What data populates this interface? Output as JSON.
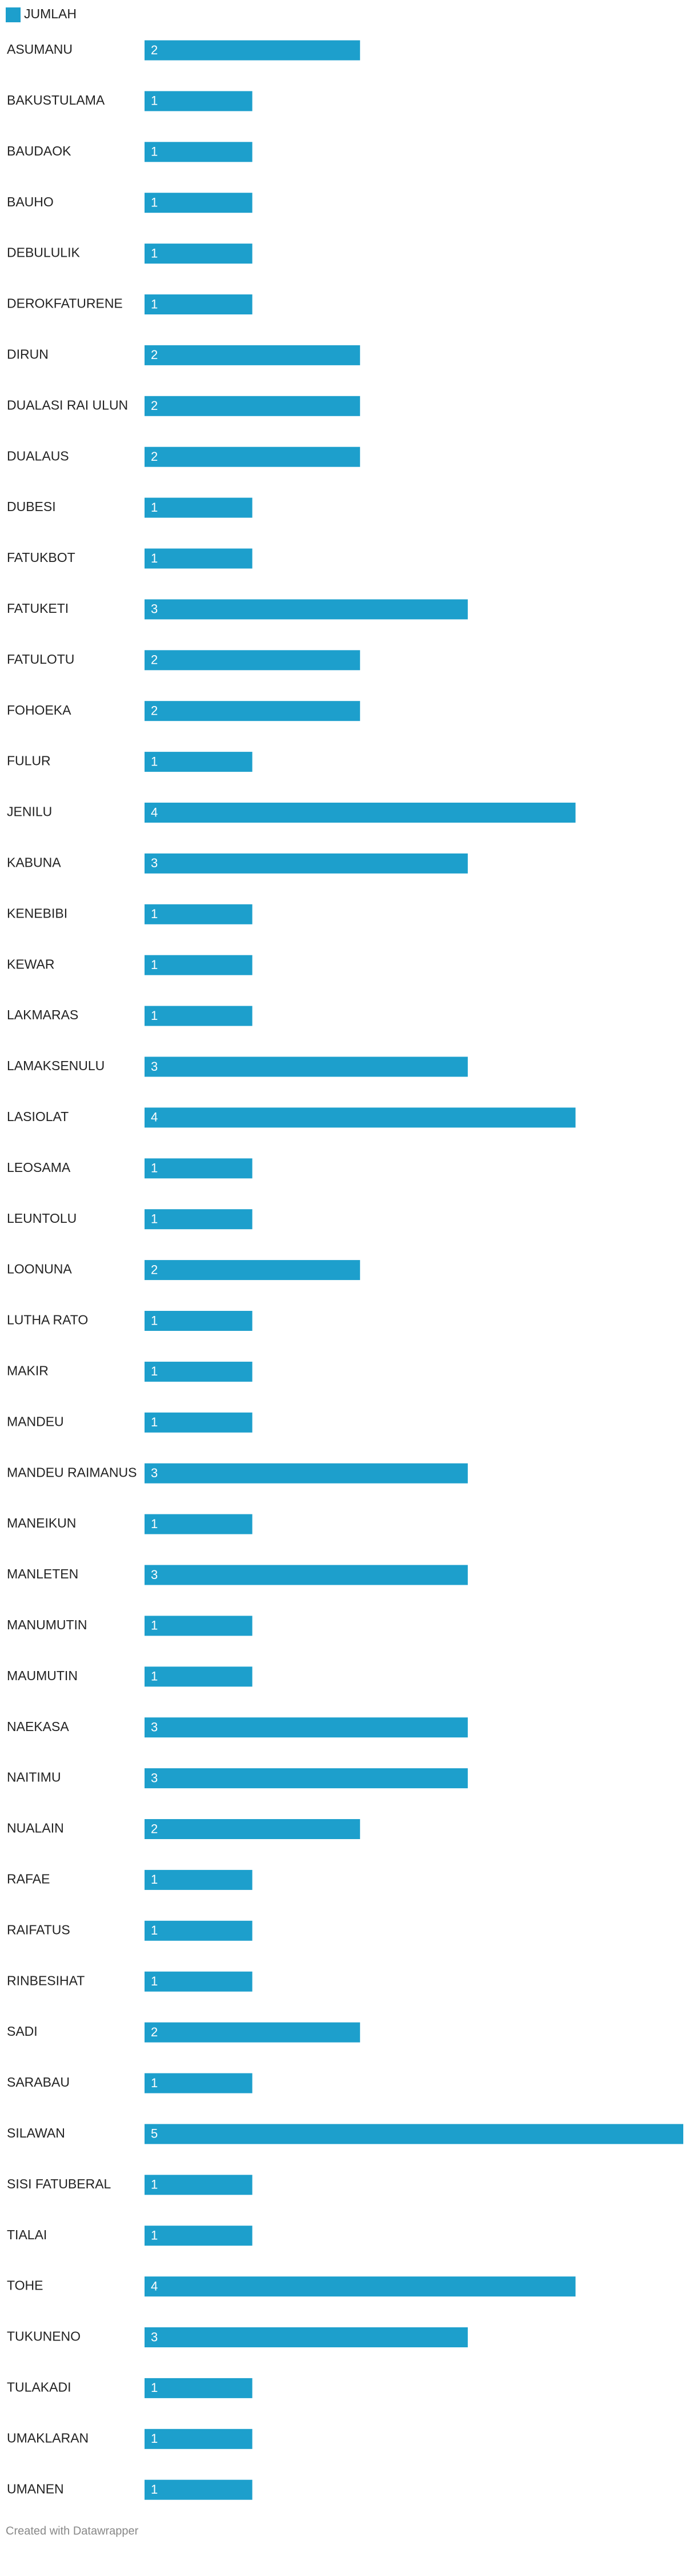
{
  "chart_data": {
    "type": "bar",
    "orientation": "horizontal",
    "legend": "top-left",
    "series": [
      {
        "name": "JUMLAH",
        "color": "#1d9fcc",
        "values": [
          2,
          1,
          1,
          1,
          1,
          1,
          2,
          2,
          2,
          1,
          1,
          3,
          2,
          2,
          1,
          4,
          3,
          1,
          1,
          1,
          3,
          4,
          1,
          1,
          2,
          1,
          1,
          1,
          3,
          1,
          3,
          1,
          1,
          3,
          3,
          2,
          1,
          1,
          1,
          2,
          1,
          5,
          1,
          1,
          4,
          3,
          1,
          1,
          1
        ]
      }
    ],
    "categories": [
      "ASUMANU",
      "BAKUSTULAMA",
      "BAUDAOK",
      "BAUHO",
      "DEBULULIK",
      "DEROKFATURENE",
      "DIRUN",
      "DUALASI RAI ULUN",
      "DUALAUS",
      "DUBESI",
      "FATUKBOT",
      "FATUKETI",
      "FATULOTU",
      "FOHOEKA",
      "FULUR",
      "JENILU",
      "KABUNA",
      "KENEBIBI",
      "KEWAR",
      "LAKMARAS",
      "LAMAKSENULU",
      "LASIOLAT",
      "LEOSAMA",
      "LEUNTOLU",
      "LOONUNA",
      "LUTHA RATO",
      "MAKIR",
      "MANDEU",
      "MANDEU RAIMANUS",
      "MANEIKUN",
      "MANLETEN",
      "MANUMUTIN",
      "MAUMUTIN",
      "NAEKASA",
      "NAITIMU",
      "NUALAIN",
      "RAFAE",
      "RAIFATUS",
      "RINBESIHAT",
      "SADI",
      "SARABAU",
      "SILAWAN",
      "SISI FATUBERAL",
      "TIALAI",
      "TOHE",
      "TUKUNENO",
      "TULAKADI",
      "UMAKLARAN",
      "UMANEN"
    ],
    "footer": "Created with Datawrapper"
  }
}
